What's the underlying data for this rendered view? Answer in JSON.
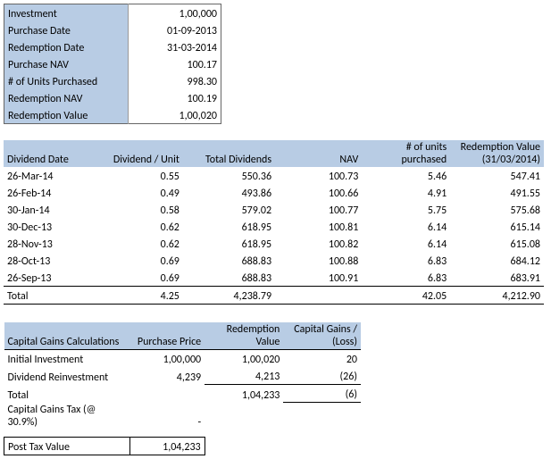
{
  "summary": {
    "rows": [
      {
        "label": "Investment",
        "value": "1,00,000"
      },
      {
        "label": "Purchase Date",
        "value": "01-09-2013"
      },
      {
        "label": "Redemption Date",
        "value": "31-03-2014"
      },
      {
        "label": "Purchase NAV",
        "value": "100.17"
      },
      {
        "label": "# of Units Purchased",
        "value": "998.30"
      },
      {
        "label": "Redemption NAV",
        "value": "100.19"
      },
      {
        "label": "Redemption Value",
        "value": "1,00,020"
      }
    ]
  },
  "div_table": {
    "headers": {
      "c1": "Dividend Date",
      "c2": "Dividend / Unit",
      "c3": "Total Dividends",
      "c4": "NAV",
      "c5": "# of units purchased",
      "c6": "Redemption Value (31/03/2014)"
    },
    "rows": [
      {
        "c1": "26-Mar-14",
        "c2": "0.55",
        "c3": "550.36",
        "c4": "100.73",
        "c5": "5.46",
        "c6": "547.41"
      },
      {
        "c1": "26-Feb-14",
        "c2": "0.49",
        "c3": "493.86",
        "c4": "100.66",
        "c5": "4.91",
        "c6": "491.55"
      },
      {
        "c1": "30-Jan-14",
        "c2": "0.58",
        "c3": "579.02",
        "c4": "100.77",
        "c5": "5.75",
        "c6": "575.68"
      },
      {
        "c1": "30-Dec-13",
        "c2": "0.62",
        "c3": "618.95",
        "c4": "100.81",
        "c5": "6.14",
        "c6": "615.14"
      },
      {
        "c1": "28-Nov-13",
        "c2": "0.62",
        "c3": "618.95",
        "c4": "100.82",
        "c5": "6.14",
        "c6": "615.08"
      },
      {
        "c1": "28-Oct-13",
        "c2": "0.69",
        "c3": "688.83",
        "c4": "100.88",
        "c5": "6.83",
        "c6": "684.12"
      },
      {
        "c1": "26-Sep-13",
        "c2": "0.69",
        "c3": "688.83",
        "c4": "100.91",
        "c5": "6.83",
        "c6": "683.91"
      }
    ],
    "total": {
      "c1": "Total",
      "c2": "4.25",
      "c3": "4,238.79",
      "c4": "",
      "c5": "42.05",
      "c6": "4,212.90"
    }
  },
  "cg_table": {
    "headers": {
      "c1": "Capital Gains  Calculations",
      "c2": "Purchase Price",
      "c3": "Redemption Value",
      "c4": "Capital Gains  / (Loss)"
    },
    "rows": [
      {
        "c1": "Initial Investment",
        "c2": "1,00,000",
        "c3": "1,00,020",
        "c4": "20"
      },
      {
        "c1": "Dividend Reinvestment",
        "c2": "4,239",
        "c3": "4,213",
        "c4": "(26)"
      }
    ],
    "total": {
      "c1": "Total",
      "c2": "",
      "c3": "1,04,233",
      "c4": "(6)"
    },
    "tax": {
      "label": "Capital Gains Tax (@ 30.9%)",
      "value": "-"
    },
    "post": {
      "label": "Post Tax Value",
      "value": "1,04,233"
    }
  }
}
